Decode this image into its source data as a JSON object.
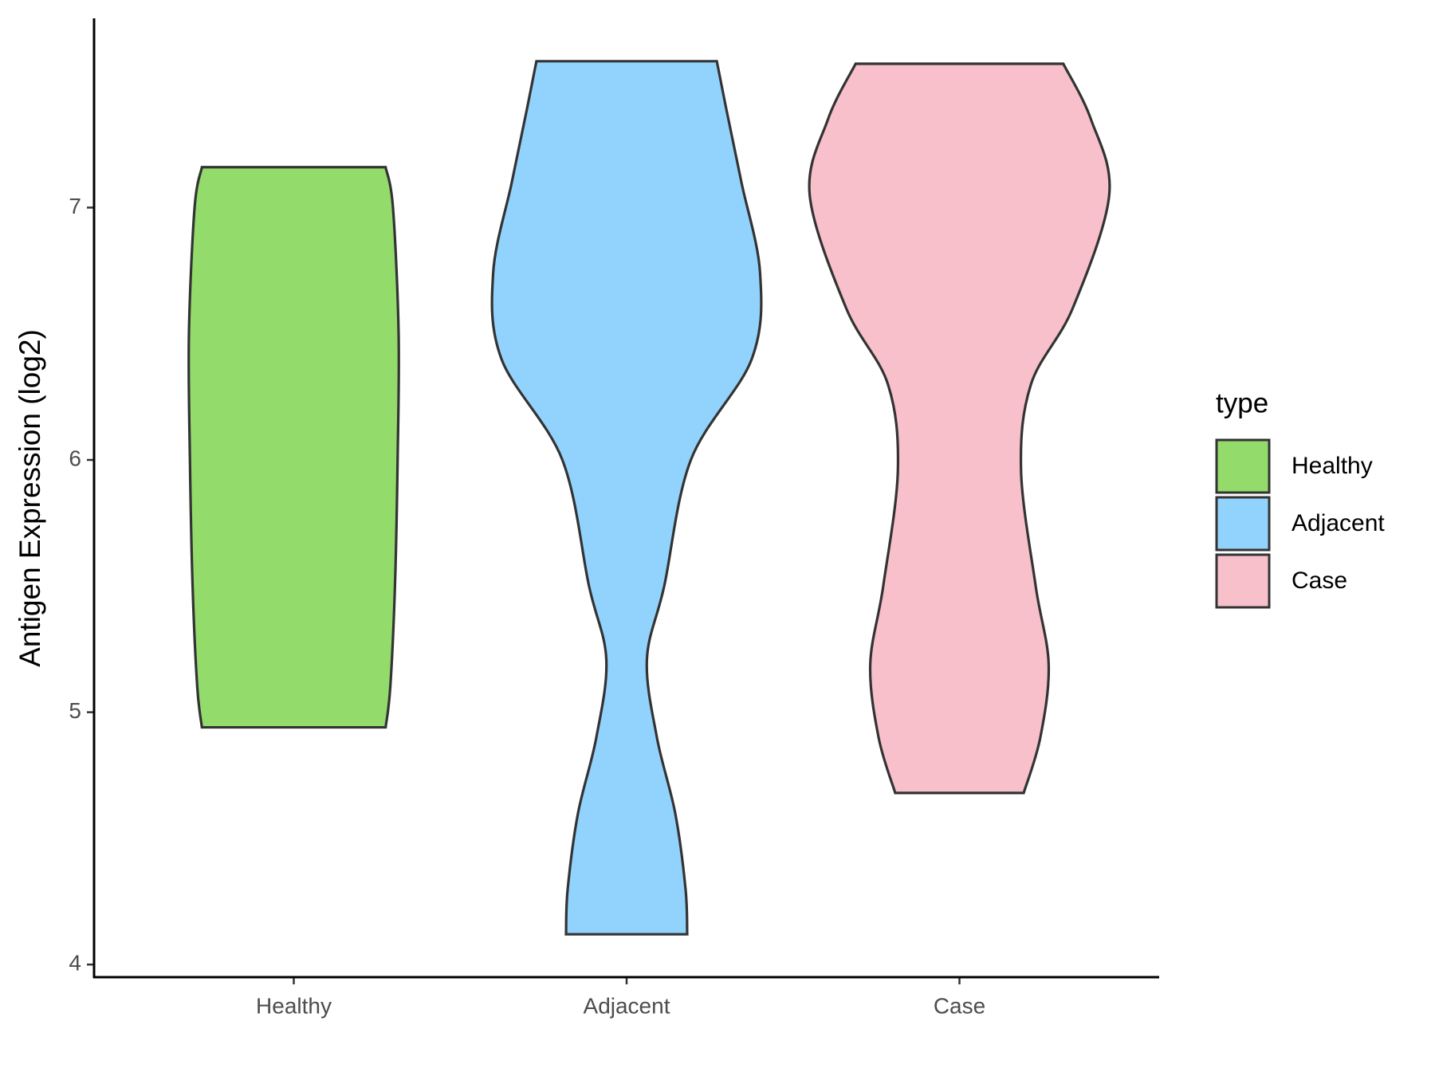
{
  "chart_data": {
    "type": "violin",
    "y_label": "Antigen Expression (log2)",
    "legend_title": "type",
    "legend_position": "right",
    "categories": [
      "Healthy",
      "Adjacent",
      "Case"
    ],
    "ylim": [
      3.95,
      7.75
    ],
    "yticks": [
      4,
      5,
      6,
      7
    ],
    "series": [
      {
        "name": "Healthy",
        "color": "#93db6b",
        "y": [
          4.94,
          5.1,
          5.5,
          6.0,
          6.5,
          7.0,
          7.16
        ],
        "widths": [
          0.276,
          0.29,
          0.304,
          0.312,
          0.315,
          0.298,
          0.276
        ]
      },
      {
        "name": "Adjacent",
        "color": "#92d3fe",
        "y": [
          4.12,
          4.3,
          4.6,
          4.9,
          5.21,
          5.5,
          6.0,
          6.4,
          6.74,
          7.1,
          7.4,
          7.58
        ],
        "widths": [
          0.182,
          0.177,
          0.146,
          0.091,
          0.061,
          0.113,
          0.193,
          0.376,
          0.401,
          0.345,
          0.298,
          0.271
        ]
      },
      {
        "name": "Case",
        "color": "#f7c0cb",
        "y": [
          4.68,
          4.9,
          5.19,
          5.5,
          5.96,
          6.3,
          6.6,
          7.05,
          7.35,
          7.57
        ],
        "widths": [
          0.193,
          0.243,
          0.268,
          0.229,
          0.185,
          0.215,
          0.34,
          0.45,
          0.395,
          0.312
        ]
      }
    ]
  }
}
